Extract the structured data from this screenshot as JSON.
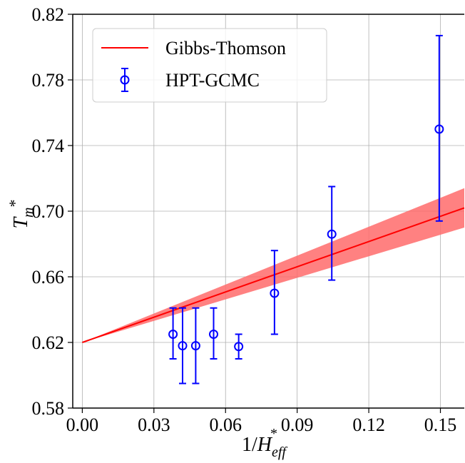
{
  "chart_data": {
    "type": "scatter",
    "xlabel": "1/H*eff",
    "ylabel": "Tm*",
    "xlim": [
      -0.004,
      0.16
    ],
    "ylim": [
      0.58,
      0.82
    ],
    "xticks": [
      "0.00",
      "0.03",
      "0.06",
      "0.09",
      "0.12",
      "0.15"
    ],
    "yticks": [
      "0.58",
      "0.62",
      "0.66",
      "0.70",
      "0.74",
      "0.78",
      "0.82"
    ],
    "xtick_values": [
      0.0,
      0.03,
      0.06,
      0.09,
      0.12,
      0.15
    ],
    "ytick_values": [
      0.58,
      0.62,
      0.66,
      0.7,
      0.74,
      0.78,
      0.82
    ],
    "grid": true,
    "legend_position": "top-left",
    "series": [
      {
        "name": "Gibbs-Thomson",
        "kind": "line",
        "color": "#ff0000",
        "x": [
          0.0,
          0.16
        ],
        "y": [
          0.62,
          0.702
        ],
        "band_upper": [
          0.62,
          0.714
        ],
        "band_lower": [
          0.62,
          0.69
        ],
        "band_color": "#ff6b6b"
      },
      {
        "name": "HPT-GCMC",
        "kind": "errorbar",
        "color": "#0000ff",
        "x": [
          0.038,
          0.042,
          0.0475,
          0.055,
          0.0655,
          0.0805,
          0.1045,
          0.1495
        ],
        "y": [
          0.625,
          0.618,
          0.618,
          0.625,
          0.6175,
          0.65,
          0.686,
          0.75
        ],
        "yerr_low": [
          0.61,
          0.595,
          0.595,
          0.61,
          0.61,
          0.625,
          0.658,
          0.694
        ],
        "yerr_high": [
          0.641,
          0.641,
          0.641,
          0.641,
          0.625,
          0.676,
          0.715,
          0.807
        ]
      }
    ]
  }
}
